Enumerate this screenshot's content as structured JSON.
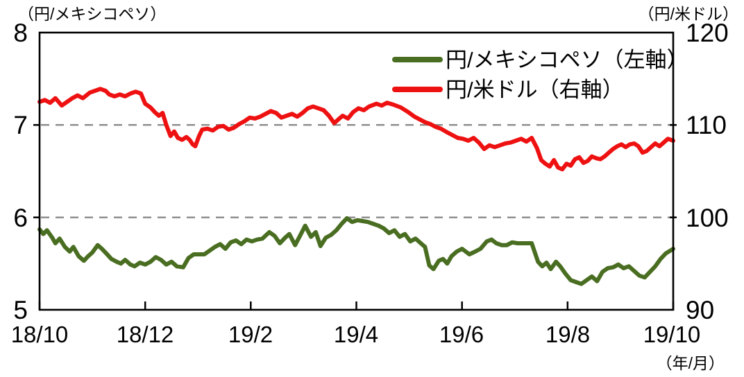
{
  "chart_data": {
    "type": "line",
    "left_axis_unit": "（円/メキシコペソ）",
    "right_axis_unit": "（円/米ドル）",
    "x_axis_unit": "（年/月）",
    "left_axis": {
      "min": 5,
      "max": 8,
      "tick_labels": [
        "8",
        "7",
        "6",
        "5"
      ]
    },
    "right_axis": {
      "min": 90,
      "max": 120,
      "tick_labels": [
        "120",
        "110",
        "100",
        "90"
      ]
    },
    "x_axis": {
      "min": 0,
      "max": 12,
      "tick_labels": [
        "18/10",
        "18/12",
        "19/2",
        "19/4",
        "19/6",
        "19/8",
        "19/10"
      ]
    },
    "gridlines": {
      "left_axis_values": [
        7,
        6
      ],
      "color": "#8f8f8f"
    },
    "legend_position": "top-right",
    "series": [
      {
        "name": "mxn-jpy",
        "legend_label": "円/メキシコペソ（左軸）",
        "axis": "left",
        "color": "#4a6e21",
        "points": [
          [
            0,
            5.87
          ],
          [
            0.07,
            5.82
          ],
          [
            0.14,
            5.86
          ],
          [
            0.24,
            5.78
          ],
          [
            0.3,
            5.72
          ],
          [
            0.38,
            5.77
          ],
          [
            0.48,
            5.68
          ],
          [
            0.57,
            5.63
          ],
          [
            0.64,
            5.68
          ],
          [
            0.74,
            5.58
          ],
          [
            0.84,
            5.53
          ],
          [
            0.92,
            5.58
          ],
          [
            1.0,
            5.62
          ],
          [
            1.1,
            5.7
          ],
          [
            1.18,
            5.66
          ],
          [
            1.28,
            5.6
          ],
          [
            1.36,
            5.55
          ],
          [
            1.46,
            5.52
          ],
          [
            1.54,
            5.5
          ],
          [
            1.62,
            5.54
          ],
          [
            1.72,
            5.49
          ],
          [
            1.8,
            5.47
          ],
          [
            1.9,
            5.51
          ],
          [
            2.0,
            5.49
          ],
          [
            2.1,
            5.52
          ],
          [
            2.2,
            5.57
          ],
          [
            2.3,
            5.54
          ],
          [
            2.4,
            5.49
          ],
          [
            2.5,
            5.52
          ],
          [
            2.6,
            5.47
          ],
          [
            2.72,
            5.46
          ],
          [
            2.82,
            5.56
          ],
          [
            2.92,
            5.6
          ],
          [
            3.02,
            5.6
          ],
          [
            3.12,
            5.6
          ],
          [
            3.22,
            5.64
          ],
          [
            3.32,
            5.68
          ],
          [
            3.42,
            5.71
          ],
          [
            3.52,
            5.66
          ],
          [
            3.62,
            5.73
          ],
          [
            3.72,
            5.75
          ],
          [
            3.82,
            5.71
          ],
          [
            3.92,
            5.76
          ],
          [
            4.02,
            5.74
          ],
          [
            4.12,
            5.76
          ],
          [
            4.22,
            5.77
          ],
          [
            4.35,
            5.84
          ],
          [
            4.45,
            5.8
          ],
          [
            4.55,
            5.72
          ],
          [
            4.65,
            5.78
          ],
          [
            4.73,
            5.82
          ],
          [
            4.84,
            5.7
          ],
          [
            4.95,
            5.82
          ],
          [
            5.03,
            5.91
          ],
          [
            5.14,
            5.79
          ],
          [
            5.23,
            5.84
          ],
          [
            5.32,
            5.69
          ],
          [
            5.42,
            5.78
          ],
          [
            5.52,
            5.81
          ],
          [
            5.62,
            5.86
          ],
          [
            5.72,
            5.93
          ],
          [
            5.82,
            5.99
          ],
          [
            5.92,
            5.95
          ],
          [
            6.02,
            5.97
          ],
          [
            6.12,
            5.96
          ],
          [
            6.22,
            5.95
          ],
          [
            6.32,
            5.93
          ],
          [
            6.42,
            5.91
          ],
          [
            6.52,
            5.88
          ],
          [
            6.62,
            5.83
          ],
          [
            6.72,
            5.86
          ],
          [
            6.82,
            5.79
          ],
          [
            6.92,
            5.82
          ],
          [
            7.02,
            5.74
          ],
          [
            7.12,
            5.77
          ],
          [
            7.22,
            5.72
          ],
          [
            7.3,
            5.68
          ],
          [
            7.38,
            5.48
          ],
          [
            7.46,
            5.44
          ],
          [
            7.56,
            5.53
          ],
          [
            7.64,
            5.55
          ],
          [
            7.72,
            5.5
          ],
          [
            7.8,
            5.58
          ],
          [
            7.9,
            5.63
          ],
          [
            8.0,
            5.66
          ],
          [
            8.14,
            5.6
          ],
          [
            8.25,
            5.63
          ],
          [
            8.35,
            5.66
          ],
          [
            8.47,
            5.74
          ],
          [
            8.56,
            5.76
          ],
          [
            8.65,
            5.72
          ],
          [
            8.75,
            5.7
          ],
          [
            8.85,
            5.7
          ],
          [
            8.95,
            5.73
          ],
          [
            9.05,
            5.72
          ],
          [
            9.15,
            5.72
          ],
          [
            9.25,
            5.72
          ],
          [
            9.32,
            5.72
          ],
          [
            9.44,
            5.52
          ],
          [
            9.52,
            5.47
          ],
          [
            9.6,
            5.51
          ],
          [
            9.68,
            5.44
          ],
          [
            9.78,
            5.52
          ],
          [
            9.86,
            5.47
          ],
          [
            9.96,
            5.39
          ],
          [
            10.06,
            5.32
          ],
          [
            10.16,
            5.3
          ],
          [
            10.26,
            5.28
          ],
          [
            10.36,
            5.32
          ],
          [
            10.46,
            5.36
          ],
          [
            10.56,
            5.31
          ],
          [
            10.66,
            5.41
          ],
          [
            10.76,
            5.45
          ],
          [
            10.86,
            5.46
          ],
          [
            10.96,
            5.49
          ],
          [
            11.06,
            5.45
          ],
          [
            11.16,
            5.47
          ],
          [
            11.26,
            5.42
          ],
          [
            11.36,
            5.37
          ],
          [
            11.46,
            5.35
          ],
          [
            11.56,
            5.41
          ],
          [
            11.66,
            5.47
          ],
          [
            11.76,
            5.55
          ],
          [
            11.86,
            5.61
          ],
          [
            12.0,
            5.66
          ]
        ]
      },
      {
        "name": "usd-jpy",
        "legend_label": "円/米ドル（右軸）",
        "axis": "right",
        "color": "#ee1111",
        "points": [
          [
            0,
            112.5
          ],
          [
            0.1,
            112.7
          ],
          [
            0.2,
            112.4
          ],
          [
            0.3,
            112.9
          ],
          [
            0.42,
            112.1
          ],
          [
            0.52,
            112.5
          ],
          [
            0.62,
            112.9
          ],
          [
            0.72,
            113.2
          ],
          [
            0.82,
            112.9
          ],
          [
            0.95,
            113.5
          ],
          [
            1.05,
            113.7
          ],
          [
            1.15,
            113.9
          ],
          [
            1.25,
            113.7
          ],
          [
            1.32,
            113.3
          ],
          [
            1.42,
            113.1
          ],
          [
            1.52,
            113.3
          ],
          [
            1.62,
            113.1
          ],
          [
            1.72,
            113.4
          ],
          [
            1.82,
            113.6
          ],
          [
            1.92,
            113.4
          ],
          [
            2.0,
            112.3
          ],
          [
            2.1,
            111.9
          ],
          [
            2.18,
            111.4
          ],
          [
            2.26,
            111.0
          ],
          [
            2.33,
            111.3
          ],
          [
            2.4,
            110.0
          ],
          [
            2.48,
            108.8
          ],
          [
            2.55,
            109.3
          ],
          [
            2.62,
            108.6
          ],
          [
            2.7,
            108.4
          ],
          [
            2.78,
            108.7
          ],
          [
            2.84,
            108.4
          ],
          [
            2.9,
            107.9
          ],
          [
            2.95,
            107.7
          ],
          [
            3.02,
            108.8
          ],
          [
            3.08,
            109.5
          ],
          [
            3.18,
            109.6
          ],
          [
            3.28,
            109.4
          ],
          [
            3.38,
            109.8
          ],
          [
            3.48,
            109.9
          ],
          [
            3.58,
            109.5
          ],
          [
            3.68,
            109.7
          ],
          [
            3.78,
            110.1
          ],
          [
            3.88,
            110.4
          ],
          [
            3.98,
            110.8
          ],
          [
            4.08,
            110.7
          ],
          [
            4.18,
            110.9
          ],
          [
            4.28,
            111.2
          ],
          [
            4.38,
            111.5
          ],
          [
            4.48,
            111.3
          ],
          [
            4.58,
            110.8
          ],
          [
            4.68,
            111.0
          ],
          [
            4.78,
            111.2
          ],
          [
            4.88,
            110.9
          ],
          [
            4.98,
            111.3
          ],
          [
            5.08,
            111.8
          ],
          [
            5.18,
            112.0
          ],
          [
            5.28,
            111.8
          ],
          [
            5.38,
            111.6
          ],
          [
            5.48,
            111.0
          ],
          [
            5.58,
            110.2
          ],
          [
            5.66,
            110.6
          ],
          [
            5.74,
            111.0
          ],
          [
            5.84,
            110.7
          ],
          [
            5.94,
            111.4
          ],
          [
            6.04,
            111.8
          ],
          [
            6.14,
            111.6
          ],
          [
            6.24,
            112.0
          ],
          [
            6.38,
            112.3
          ],
          [
            6.48,
            112.1
          ],
          [
            6.58,
            112.4
          ],
          [
            6.7,
            112.2
          ],
          [
            6.84,
            111.9
          ],
          [
            6.98,
            111.4
          ],
          [
            7.1,
            110.9
          ],
          [
            7.2,
            110.6
          ],
          [
            7.3,
            110.3
          ],
          [
            7.4,
            110.1
          ],
          [
            7.5,
            109.8
          ],
          [
            7.6,
            109.6
          ],
          [
            7.72,
            109.2
          ],
          [
            7.82,
            108.9
          ],
          [
            7.92,
            108.6
          ],
          [
            8.02,
            108.5
          ],
          [
            8.12,
            108.3
          ],
          [
            8.22,
            108.6
          ],
          [
            8.32,
            108.1
          ],
          [
            8.42,
            107.4
          ],
          [
            8.52,
            107.8
          ],
          [
            8.62,
            107.6
          ],
          [
            8.72,
            107.8
          ],
          [
            8.82,
            108.0
          ],
          [
            8.92,
            108.1
          ],
          [
            9.02,
            108.3
          ],
          [
            9.12,
            108.5
          ],
          [
            9.22,
            108.2
          ],
          [
            9.32,
            108.6
          ],
          [
            9.42,
            107.5
          ],
          [
            9.5,
            106.2
          ],
          [
            9.58,
            105.8
          ],
          [
            9.66,
            105.5
          ],
          [
            9.74,
            106.2
          ],
          [
            9.82,
            105.4
          ],
          [
            9.9,
            105.2
          ],
          [
            9.98,
            105.8
          ],
          [
            10.06,
            105.6
          ],
          [
            10.14,
            106.3
          ],
          [
            10.22,
            106.5
          ],
          [
            10.3,
            105.9
          ],
          [
            10.38,
            106.1
          ],
          [
            10.46,
            106.6
          ],
          [
            10.54,
            106.4
          ],
          [
            10.62,
            106.3
          ],
          [
            10.7,
            106.6
          ],
          [
            10.78,
            107.0
          ],
          [
            10.86,
            107.4
          ],
          [
            10.94,
            107.7
          ],
          [
            11.02,
            107.9
          ],
          [
            11.1,
            107.6
          ],
          [
            11.18,
            107.9
          ],
          [
            11.26,
            108.0
          ],
          [
            11.34,
            107.7
          ],
          [
            11.42,
            107.0
          ],
          [
            11.5,
            107.2
          ],
          [
            11.58,
            107.6
          ],
          [
            11.66,
            108.0
          ],
          [
            11.74,
            107.7
          ],
          [
            11.82,
            108.1
          ],
          [
            11.9,
            108.5
          ],
          [
            12.0,
            108.3
          ]
        ]
      }
    ]
  }
}
